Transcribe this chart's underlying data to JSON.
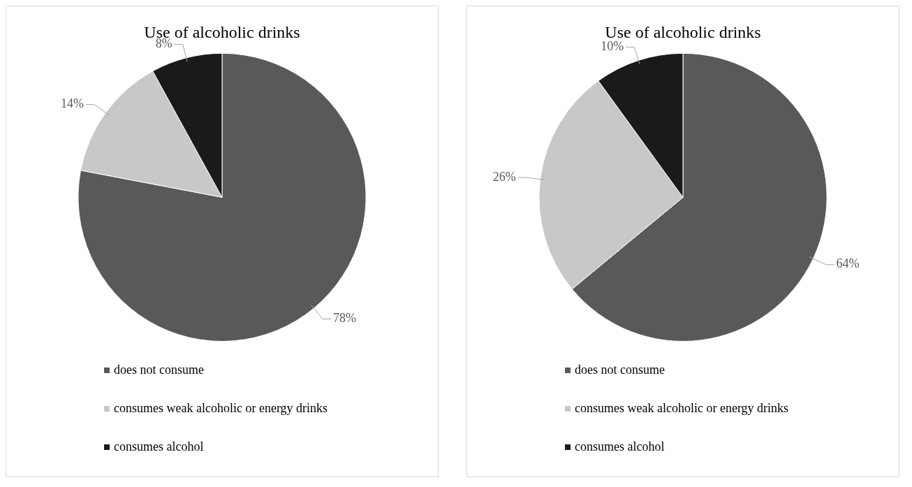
{
  "chart_data": [
    {
      "type": "pie",
      "title": "Use of alcoholic drinks",
      "categories": [
        "does not consume",
        "consumes weak alcoholic or energy drinks",
        "consumes alcohol"
      ],
      "values": [
        78,
        14,
        8
      ],
      "colors": [
        "#595959",
        "#c8c8c8",
        "#1a1a1a"
      ],
      "value_labels": [
        "78%",
        "14%",
        "8%"
      ],
      "legend": "bottom"
    },
    {
      "type": "pie",
      "title": "Use of alcoholic drinks",
      "categories": [
        "does not consume",
        "consumes weak alcoholic or energy drinks",
        "consumes alcohol"
      ],
      "values": [
        64,
        26,
        10
      ],
      "colors": [
        "#595959",
        "#c8c8c8",
        "#1a1a1a"
      ],
      "value_labels": [
        "64%",
        "26%",
        "10%"
      ],
      "legend": "bottom"
    }
  ]
}
